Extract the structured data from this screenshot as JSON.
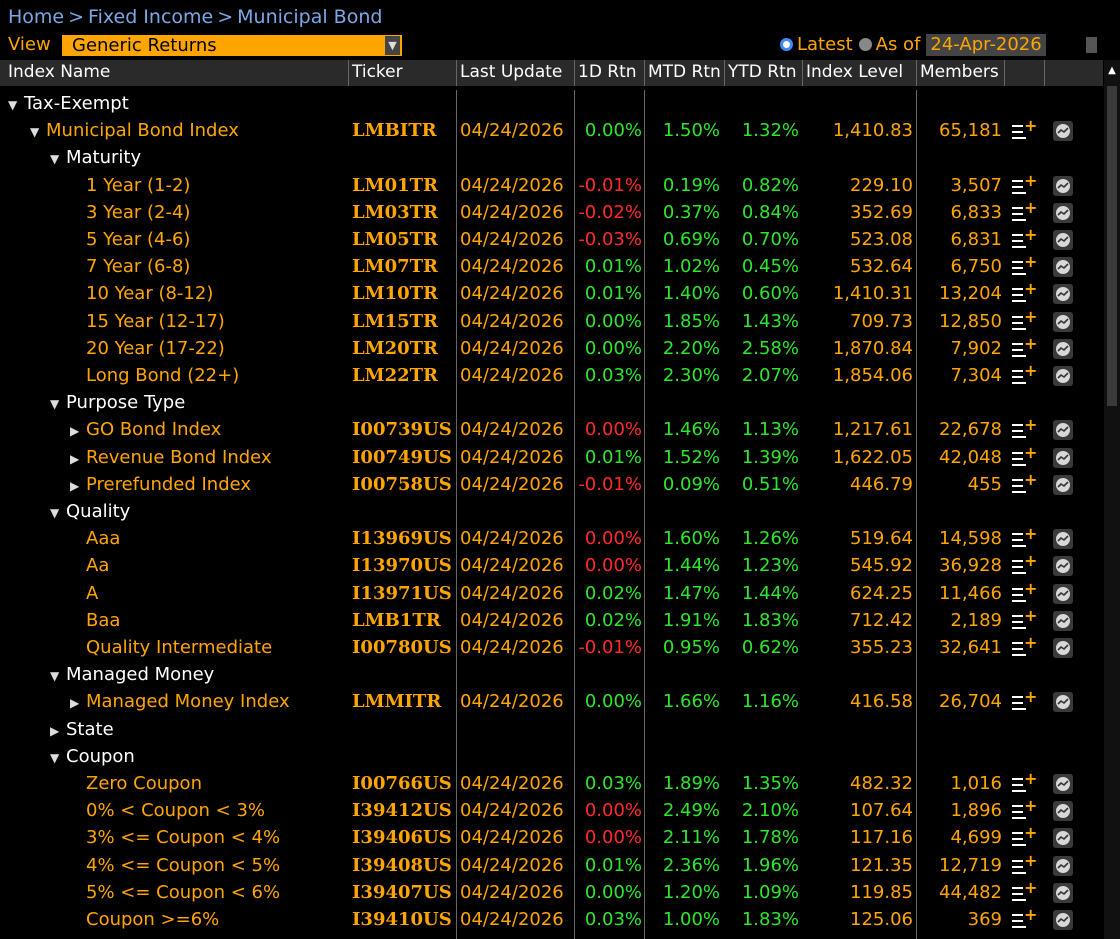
{
  "breadcrumb": [
    "Home",
    "Fixed Income",
    "Municipal Bond"
  ],
  "breadcrumb_sep": ">",
  "toolbar": {
    "view_label": "View",
    "view_value": "Generic Returns",
    "latest_label": "Latest",
    "asof_label": "As of",
    "asof_date": "24-Apr-2026"
  },
  "columns": [
    "Index Name",
    "Ticker",
    "Last Update",
    "1D Rtn",
    "MTD Rtn",
    "YTD Rtn",
    "Index Level",
    "Members"
  ],
  "colors": {
    "orange": "#ffa500",
    "green": "#2ee62e",
    "red": "#ff2a2a",
    "blue": "#7aa7e6"
  },
  "icons": {
    "add_list": "list-add-icon",
    "chart": "chart-icon"
  },
  "rows": [
    {
      "level": 0,
      "arrow": "down",
      "name": "Tax-Exempt",
      "group": true
    },
    {
      "level": 1,
      "arrow": "down",
      "name": "Municipal Bond Index",
      "ticker": "LMBITR",
      "updated": "04/24/2026",
      "d1": "0.00%",
      "mtd": "1.50%",
      "ytd": "1.32%",
      "idx": "1,410.83",
      "members": "65,181"
    },
    {
      "level": 2,
      "arrow": "down",
      "name": "Maturity",
      "group": true
    },
    {
      "level": 3,
      "name": "1 Year (1-2)",
      "ticker": "LM01TR",
      "updated": "04/24/2026",
      "d1": "-0.01%",
      "mtd": "0.19%",
      "ytd": "0.82%",
      "idx": "229.10",
      "members": "3,507"
    },
    {
      "level": 3,
      "name": "3 Year (2-4)",
      "ticker": "LM03TR",
      "updated": "04/24/2026",
      "d1": "-0.02%",
      "mtd": "0.37%",
      "ytd": "0.84%",
      "idx": "352.69",
      "members": "6,833"
    },
    {
      "level": 3,
      "name": "5 Year (4-6)",
      "ticker": "LM05TR",
      "updated": "04/24/2026",
      "d1": "-0.03%",
      "mtd": "0.69%",
      "ytd": "0.70%",
      "idx": "523.08",
      "members": "6,831"
    },
    {
      "level": 3,
      "name": "7 Year (6-8)",
      "ticker": "LM07TR",
      "updated": "04/24/2026",
      "d1": "0.01%",
      "mtd": "1.02%",
      "ytd": "0.45%",
      "idx": "532.64",
      "members": "6,750"
    },
    {
      "level": 3,
      "name": "10 Year (8-12)",
      "ticker": "LM10TR",
      "updated": "04/24/2026",
      "d1": "0.01%",
      "mtd": "1.40%",
      "ytd": "0.60%",
      "idx": "1,410.31",
      "members": "13,204"
    },
    {
      "level": 3,
      "name": "15 Year (12-17)",
      "ticker": "LM15TR",
      "updated": "04/24/2026",
      "d1": "0.00%",
      "mtd": "1.85%",
      "ytd": "1.43%",
      "idx": "709.73",
      "members": "12,850"
    },
    {
      "level": 3,
      "name": "20 Year (17-22)",
      "ticker": "LM20TR",
      "updated": "04/24/2026",
      "d1": "0.00%",
      "mtd": "2.20%",
      "ytd": "2.58%",
      "idx": "1,870.84",
      "members": "7,902"
    },
    {
      "level": 3,
      "name": "Long Bond (22+)",
      "ticker": "LM22TR",
      "updated": "04/24/2026",
      "d1": "0.03%",
      "mtd": "2.30%",
      "ytd": "2.07%",
      "idx": "1,854.06",
      "members": "7,304"
    },
    {
      "level": 2,
      "arrow": "down",
      "name": "Purpose Type",
      "group": true
    },
    {
      "level": 3,
      "arrow": "right",
      "name": "GO Bond Index",
      "ticker": "I00739US",
      "updated": "04/24/2026",
      "d1": "0.00%",
      "d1neg": true,
      "mtd": "1.46%",
      "ytd": "1.13%",
      "idx": "1,217.61",
      "members": "22,678"
    },
    {
      "level": 3,
      "arrow": "right",
      "name": "Revenue Bond Index",
      "ticker": "I00749US",
      "updated": "04/24/2026",
      "d1": "0.01%",
      "mtd": "1.52%",
      "ytd": "1.39%",
      "idx": "1,622.05",
      "members": "42,048"
    },
    {
      "level": 3,
      "arrow": "right",
      "name": "Prerefunded Index",
      "ticker": "I00758US",
      "updated": "04/24/2026",
      "d1": "-0.01%",
      "mtd": "0.09%",
      "ytd": "0.51%",
      "idx": "446.79",
      "members": "455"
    },
    {
      "level": 2,
      "arrow": "down",
      "name": "Quality",
      "group": true
    },
    {
      "level": 3,
      "name": "Aaa",
      "ticker": "I13969US",
      "updated": "04/24/2026",
      "d1": "0.00%",
      "d1neg": true,
      "mtd": "1.60%",
      "ytd": "1.26%",
      "idx": "519.64",
      "members": "14,598"
    },
    {
      "level": 3,
      "name": "Aa",
      "ticker": "I13970US",
      "updated": "04/24/2026",
      "d1": "0.00%",
      "d1neg": true,
      "mtd": "1.44%",
      "ytd": "1.23%",
      "idx": "545.92",
      "members": "36,928"
    },
    {
      "level": 3,
      "name": "A",
      "ticker": "I13971US",
      "updated": "04/24/2026",
      "d1": "0.02%",
      "mtd": "1.47%",
      "ytd": "1.44%",
      "idx": "624.25",
      "members": "11,466"
    },
    {
      "level": 3,
      "name": "Baa",
      "ticker": "LMB1TR",
      "updated": "04/24/2026",
      "d1": "0.02%",
      "mtd": "1.91%",
      "ytd": "1.83%",
      "idx": "712.42",
      "members": "2,189"
    },
    {
      "level": 3,
      "name": "Quality Intermediate",
      "ticker": "I00780US",
      "updated": "04/24/2026",
      "d1": "-0.01%",
      "mtd": "0.95%",
      "ytd": "0.62%",
      "idx": "355.23",
      "members": "32,641"
    },
    {
      "level": 2,
      "arrow": "down",
      "name": "Managed Money",
      "group": true
    },
    {
      "level": 3,
      "arrow": "right",
      "name": "Managed Money Index",
      "ticker": "LMMITR",
      "updated": "04/24/2026",
      "d1": "0.00%",
      "mtd": "1.66%",
      "ytd": "1.16%",
      "idx": "416.58",
      "members": "26,704"
    },
    {
      "level": 2,
      "arrow": "right",
      "name": "State",
      "group": true
    },
    {
      "level": 2,
      "arrow": "down",
      "name": "Coupon",
      "group": true
    },
    {
      "level": 3,
      "name": "Zero Coupon",
      "ticker": "I00766US",
      "updated": "04/24/2026",
      "d1": "0.03%",
      "mtd": "1.89%",
      "ytd": "1.35%",
      "idx": "482.32",
      "members": "1,016"
    },
    {
      "level": 3,
      "name": "0% < Coupon < 3%",
      "ticker": "I39412US",
      "updated": "04/24/2026",
      "d1": "0.00%",
      "d1neg": true,
      "mtd": "2.49%",
      "ytd": "2.10%",
      "idx": "107.64",
      "members": "1,896"
    },
    {
      "level": 3,
      "name": "3% <= Coupon < 4%",
      "ticker": "I39406US",
      "updated": "04/24/2026",
      "d1": "0.00%",
      "d1neg": true,
      "mtd": "2.11%",
      "ytd": "1.78%",
      "idx": "117.16",
      "members": "4,699"
    },
    {
      "level": 3,
      "name": "4% <= Coupon < 5%",
      "ticker": "I39408US",
      "updated": "04/24/2026",
      "d1": "0.01%",
      "mtd": "2.36%",
      "ytd": "1.96%",
      "idx": "121.35",
      "members": "12,719"
    },
    {
      "level": 3,
      "name": "5% <= Coupon < 6%",
      "ticker": "I39407US",
      "updated": "04/24/2026",
      "d1": "0.00%",
      "mtd": "1.20%",
      "ytd": "1.09%",
      "idx": "119.85",
      "members": "44,482"
    },
    {
      "level": 3,
      "name": "Coupon >=6%",
      "ticker": "I39410US",
      "updated": "04/24/2026",
      "d1": "0.03%",
      "mtd": "1.00%",
      "ytd": "1.83%",
      "idx": "125.06",
      "members": "369"
    }
  ]
}
